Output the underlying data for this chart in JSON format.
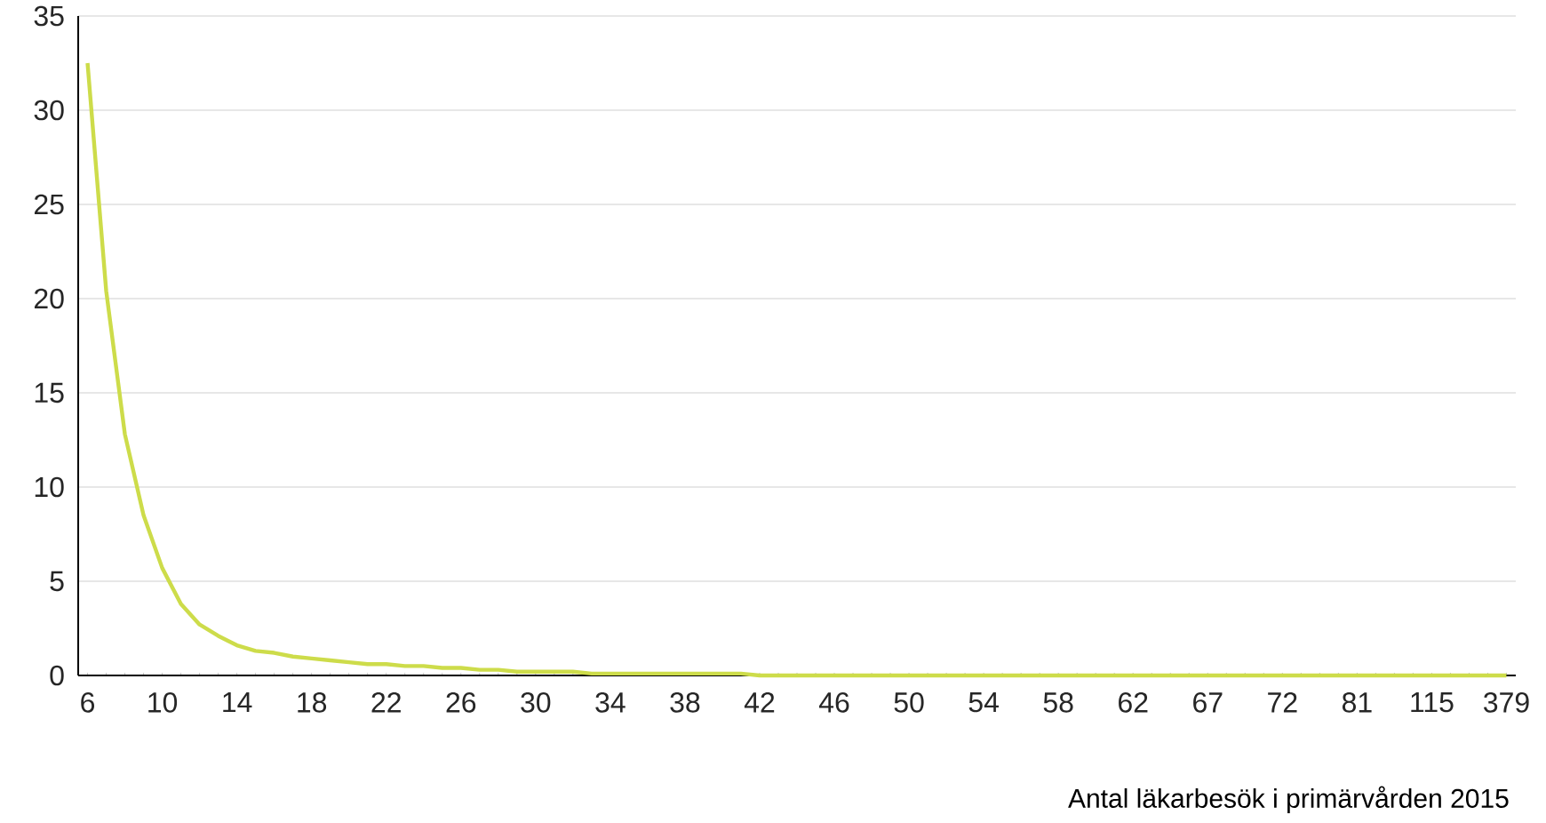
{
  "chart_data": {
    "type": "line",
    "xlabel": "Antal läkarbesök i primärvården 2015",
    "categories": [
      "6",
      null,
      null,
      null,
      "10",
      null,
      null,
      null,
      "14",
      null,
      null,
      null,
      "18",
      null,
      null,
      null,
      "22",
      null,
      null,
      null,
      "26",
      null,
      null,
      null,
      "30",
      null,
      null,
      null,
      "34",
      null,
      null,
      null,
      "38",
      null,
      null,
      null,
      "42",
      null,
      null,
      null,
      "46",
      null,
      null,
      null,
      "50",
      null,
      null,
      null,
      "54",
      null,
      null,
      null,
      "58",
      null,
      null,
      null,
      "62",
      null,
      null,
      null,
      "67",
      null,
      null,
      null,
      "72",
      null,
      null,
      null,
      "81",
      null,
      null,
      null,
      "115",
      null,
      null,
      null,
      "379"
    ],
    "series": [
      {
        "color": "#cddc4a",
        "values": [
          32.5,
          20.4,
          12.8,
          8.5,
          5.7,
          3.8,
          2.7,
          2.1,
          1.6,
          1.3,
          1.2,
          1.0,
          0.9,
          0.8,
          0.7,
          0.6,
          0.6,
          0.5,
          0.5,
          0.4,
          0.4,
          0.3,
          0.3,
          0.2,
          0.2,
          0.2,
          0.2,
          0.1,
          0.1,
          0.1,
          0.1,
          0.1,
          0.1,
          0.1,
          0.1,
          0.1,
          0,
          0,
          0,
          0,
          0,
          0,
          0,
          0,
          0,
          0,
          0,
          0,
          0,
          0,
          0,
          0,
          0,
          0,
          0,
          0,
          0,
          0,
          0,
          0,
          0,
          0,
          0,
          0,
          0,
          0,
          0,
          0,
          0,
          0,
          0,
          0,
          0,
          0,
          0,
          0,
          0
        ]
      }
    ],
    "ylim": [
      0,
      35
    ],
    "yticks": [
      0,
      5,
      10,
      15,
      20,
      25,
      30,
      35
    ],
    "grid": "y",
    "marker": "none",
    "line_style": "solid"
  }
}
